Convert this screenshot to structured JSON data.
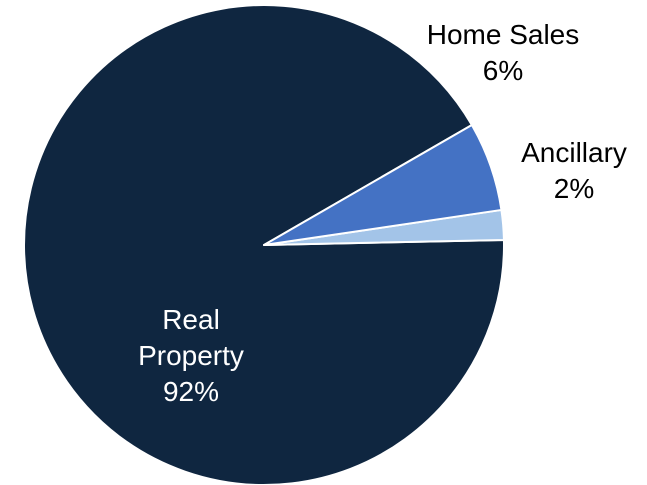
{
  "chart_data": {
    "type": "pie",
    "title": "",
    "start_angle_deg": 30,
    "direction": "counterclockwise",
    "slices": [
      {
        "label": "Real Property",
        "label_lines": [
          "Real",
          "Property"
        ],
        "value": 92,
        "value_label": "92%",
        "color": "#0f2640",
        "label_color": "#ffffff",
        "label_position": "inside"
      },
      {
        "label": "Ancillary",
        "label_lines": [
          "Ancillary"
        ],
        "value": 2,
        "value_label": "2%",
        "color": "#a3c4e8",
        "label_color": "#000000",
        "label_position": "outside"
      },
      {
        "label": "Home Sales",
        "label_lines": [
          "Home Sales"
        ],
        "value": 6,
        "value_label": "6%",
        "color": "#4472c4",
        "label_color": "#000000",
        "label_position": "outside"
      }
    ],
    "legend": "none",
    "slice_border_color": "#ffffff"
  }
}
